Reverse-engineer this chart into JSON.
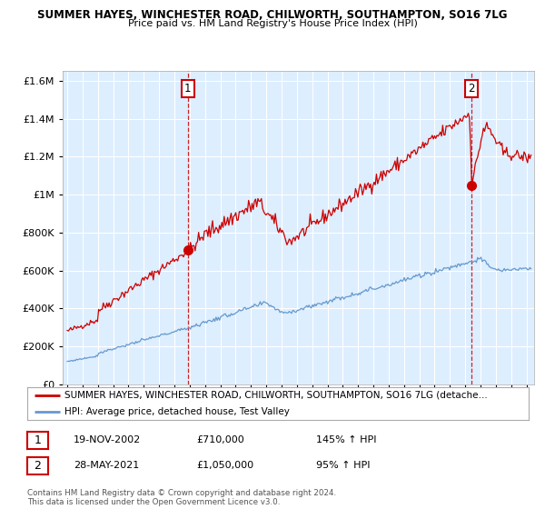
{
  "title1": "SUMMER HAYES, WINCHESTER ROAD, CHILWORTH, SOUTHAMPTON, SO16 7LG",
  "title2": "Price paid vs. HM Land Registry's House Price Index (HPI)",
  "legend_line1": "SUMMER HAYES, WINCHESTER ROAD, CHILWORTH, SOUTHAMPTON, SO16 7LG (detache…",
  "legend_line2": "HPI: Average price, detached house, Test Valley",
  "annotation1_date": "19-NOV-2002",
  "annotation1_price": "£710,000",
  "annotation1_hpi": "145% ↑ HPI",
  "annotation2_date": "28-MAY-2021",
  "annotation2_price": "£1,050,000",
  "annotation2_hpi": "95% ↑ HPI",
  "footnote": "Contains HM Land Registry data © Crown copyright and database right 2024.\nThis data is licensed under the Open Government Licence v3.0.",
  "red_line_color": "#cc0000",
  "blue_line_color": "#6699cc",
  "bg_color": "#ddeeff",
  "grid_color": "#ffffff",
  "sale1_x": 2002.88,
  "sale1_y": 710000,
  "sale2_x": 2021.41,
  "sale2_y": 1050000,
  "ylim": [
    0,
    1650000
  ],
  "xlim_start": 1994.7,
  "xlim_end": 2025.5,
  "yticks": [
    0,
    200000,
    400000,
    600000,
    800000,
    1000000,
    1200000,
    1400000,
    1600000
  ]
}
